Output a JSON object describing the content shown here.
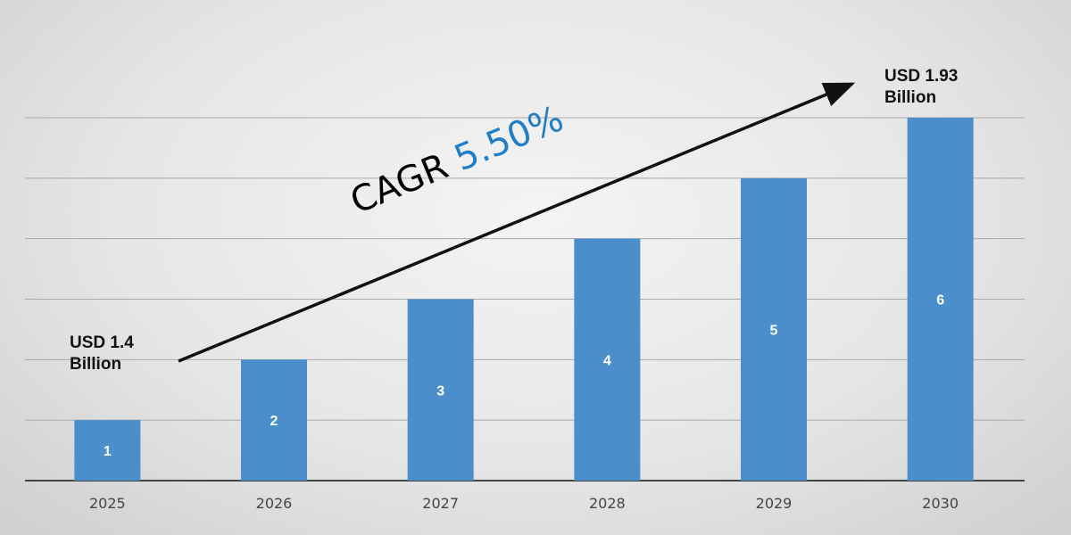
{
  "chart_data": {
    "type": "bar",
    "categories": [
      "2025",
      "2026",
      "2027",
      "2028",
      "2029",
      "2030"
    ],
    "values": [
      1,
      2,
      3,
      4,
      5,
      6
    ],
    "data_labels": [
      "1",
      "2",
      "3",
      "4",
      "5",
      "6"
    ],
    "title": "",
    "xlabel": "",
    "ylabel": "",
    "ylim": [
      0,
      6
    ],
    "grid": true,
    "bar_color": "#4a8fcc",
    "annotations": {
      "start_line1": "USD 1.4",
      "start_line2": "Billion",
      "end_line1": "USD 1.93",
      "end_line2": "Billion",
      "cagr_label": "CAGR",
      "cagr_value": "5.50%",
      "cagr_color": "#1e7ec8"
    }
  }
}
